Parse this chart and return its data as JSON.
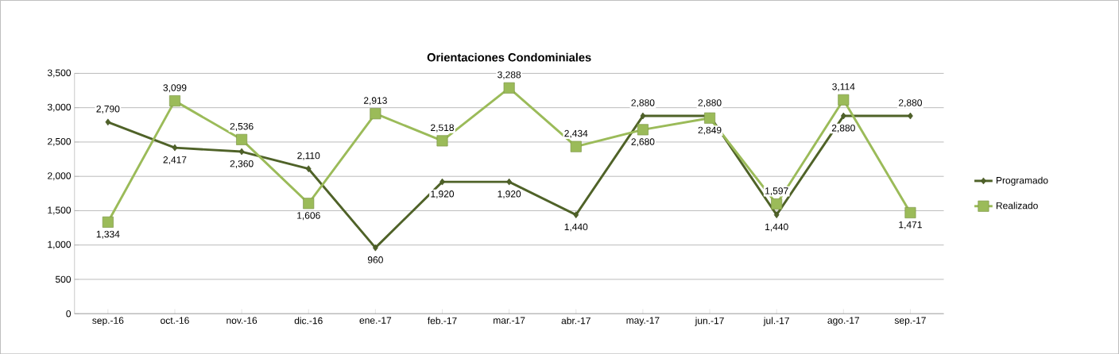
{
  "chart_data": {
    "type": "line",
    "title": "Orientaciones Condominiales",
    "categories": [
      "sep.-16",
      "oct.-16",
      "nov.-16",
      "dic.-16",
      "ene.-17",
      "feb.-17",
      "mar.-17",
      "abr.-17",
      "may.-17",
      "jun.-17",
      "jul.-17",
      "ago.-17",
      "sep.-17"
    ],
    "series": [
      {
        "name": "Programado",
        "color": "#4f6228",
        "marker": "diamond",
        "values": [
          2790,
          2417,
          2360,
          2110,
          960,
          1920,
          1920,
          1440,
          2880,
          2880,
          1440,
          2880,
          2880
        ],
        "value_labels": [
          "2,790",
          "2,417",
          "2,360",
          "2,110",
          "960",
          "1,920",
          "1,920",
          "1,440",
          "2,880",
          "2,880",
          "1,440",
          "2,880",
          "2,880"
        ]
      },
      {
        "name": "Realizado",
        "color": "#9bbb59",
        "marker": "square",
        "values": [
          1334,
          3099,
          2536,
          1606,
          2913,
          2518,
          3288,
          2434,
          2680,
          2849,
          1597,
          3114,
          1471
        ],
        "value_labels": [
          "1,334",
          "3,099",
          "2,536",
          "1,606",
          "2,913",
          "2,518",
          "3,288",
          "2,434",
          "2,680",
          "2,849",
          "1,597",
          "3,114",
          "1,471"
        ]
      }
    ],
    "ylim": [
      0,
      3500
    ],
    "yticks": [
      {
        "value": 0,
        "label": "0"
      },
      {
        "value": 500,
        "label": "500"
      },
      {
        "value": 1000,
        "label": "1,000"
      },
      {
        "value": 1500,
        "label": "1,500"
      },
      {
        "value": 2000,
        "label": "2,000"
      },
      {
        "value": 2500,
        "label": "2,500"
      },
      {
        "value": 3000,
        "label": "3,000"
      },
      {
        "value": 3500,
        "label": "3,500"
      }
    ],
    "grid": "y",
    "legend": "right",
    "line_style": "solid"
  }
}
